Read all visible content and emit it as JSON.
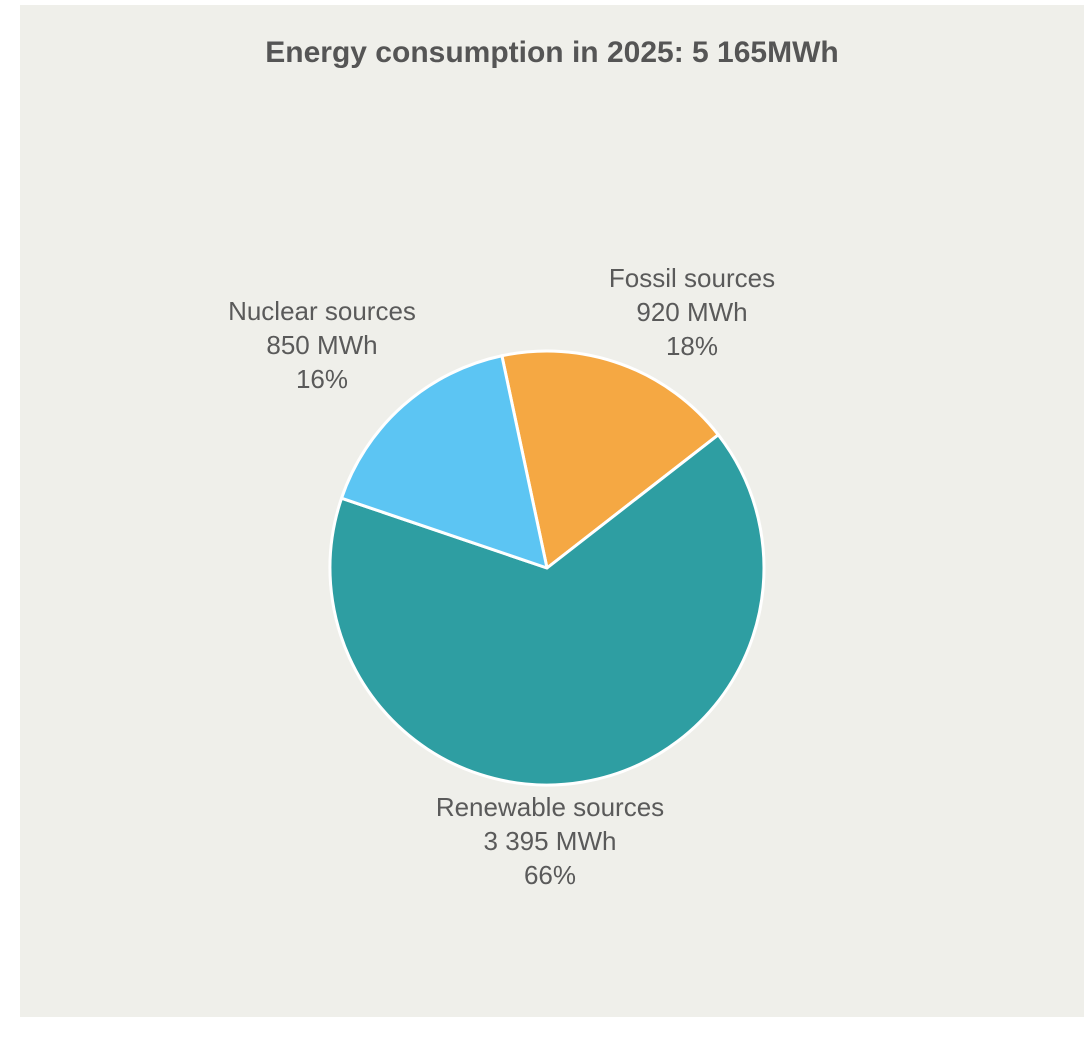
{
  "chart_data": {
    "type": "pie",
    "title": "Energy consumption in 2025: 5 165MWh",
    "slices": [
      {
        "label": "Fossil sources",
        "value": 920,
        "value_text": "920 MWh",
        "percent_text": "18%",
        "color": "#f5a843"
      },
      {
        "label": "Renewable sources",
        "value": 3395,
        "value_text": "3 395 MWh",
        "percent_text": "66%",
        "color": "#2e9ea2"
      },
      {
        "label": "Nuclear sources",
        "value": 850,
        "value_text": "850 MWh",
        "percent_text": "16%",
        "color": "#5cc5f3"
      }
    ],
    "start_angle_deg": -12,
    "legend": "none",
    "background": "#efefea",
    "slice_border": "#ffffff"
  }
}
